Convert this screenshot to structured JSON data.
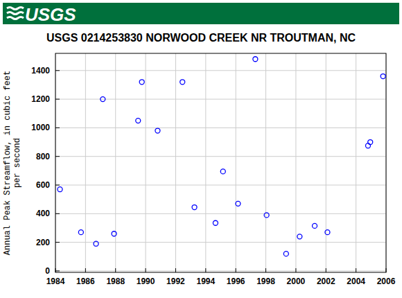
{
  "header": {
    "logo": "USGS"
  },
  "chart_data": {
    "type": "scatter",
    "title": "USGS 0214253830 NORWOOD CREEK NR TROUTMAN, NC",
    "y_label": "Annual Peak Streamflow, in cubic feet per second",
    "x": [
      1984.3,
      1985.7,
      1986.7,
      1987.15,
      1987.9,
      1989.5,
      1989.75,
      1990.8,
      1992.45,
      1993.25,
      1994.65,
      1995.15,
      1996.15,
      1997.3,
      1998.05,
      1999.35,
      2000.25,
      2001.25,
      2002.1,
      2004.8,
      2004.95,
      2005.8
    ],
    "values": [
      570,
      270,
      190,
      1200,
      260,
      1050,
      1320,
      980,
      1320,
      445,
      335,
      695,
      470,
      1480,
      390,
      120,
      240,
      315,
      270,
      875,
      900,
      1360
    ],
    "color": "#0000ff",
    "marker": "open-circle",
    "xlim": [
      1984,
      2006
    ],
    "xticks": [
      1984,
      1986,
      1988,
      1990,
      1992,
      1994,
      1996,
      1998,
      2000,
      2002,
      2004,
      2006
    ],
    "ylim": [
      -10,
      1520
    ],
    "yticks": [
      0,
      200,
      400,
      600,
      800,
      1000,
      1200,
      1400
    ],
    "grid": true
  }
}
